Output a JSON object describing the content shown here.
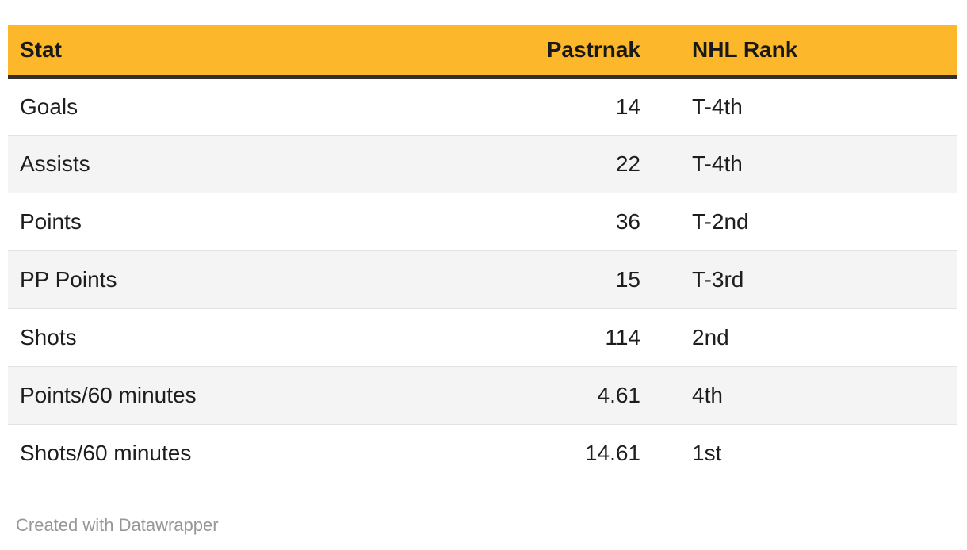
{
  "chart_data": {
    "type": "table",
    "columns": [
      "Stat",
      "Pastrnak",
      "NHL Rank"
    ],
    "rows": [
      [
        "Goals",
        "14",
        "T-4th"
      ],
      [
        "Assists",
        "22",
        "T-4th"
      ],
      [
        "Points",
        "36",
        "T-2nd"
      ],
      [
        "PP Points",
        "15",
        "T-3rd"
      ],
      [
        "Shots",
        "114",
        "2nd"
      ],
      [
        "Points/60 minutes",
        "4.61",
        "4th"
      ],
      [
        "Shots/60 minutes",
        "14.61",
        "1st"
      ]
    ],
    "layout_hints": {
      "header_background": "#FCB72B",
      "header_underline": "#322F2A",
      "alt_row_background": "#F4F4F4",
      "row_border": "#E2E2E2",
      "text_color": "#1D1D1D",
      "value_align": "right",
      "rank_align": "left"
    }
  },
  "footer": {
    "credit": "Created with Datawrapper",
    "credit_color": "#979797"
  }
}
